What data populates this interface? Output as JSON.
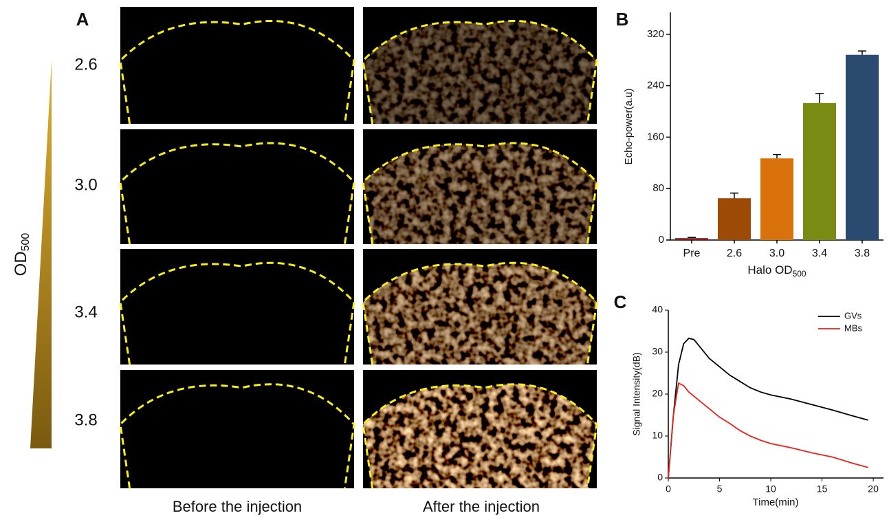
{
  "panel_a": {
    "label": "A",
    "rows": [
      "2.6",
      "3.0",
      "3.4",
      "3.8"
    ],
    "od_label": "OD",
    "od_sub": "500",
    "columns": [
      "Before the injection",
      "After the injection"
    ]
  },
  "chart_data": [
    {
      "type": "bar",
      "panel_label": "B",
      "ylabel": "Echo-power(a.u)",
      "xlabel": "Halo OD",
      "xlabel_sub": "500",
      "categories": [
        "Pre",
        "2.6",
        "3.0",
        "3.4",
        "3.8"
      ],
      "values": [
        3,
        65,
        127,
        213,
        288
      ],
      "errors": [
        1,
        8,
        6,
        15,
        6
      ],
      "colors": [
        "#8b1a1a",
        "#9c4a06",
        "#d9720a",
        "#7a8a12",
        "#2a4a70"
      ],
      "ylim": [
        0,
        354
      ],
      "yticks": [
        0,
        80,
        160,
        240,
        320
      ]
    },
    {
      "type": "line",
      "panel_label": "C",
      "xlabel": "Time(min)",
      "ylabel": "Signal Intensity(dB)",
      "x": [
        0,
        0.5,
        1,
        1.5,
        2,
        2.5,
        3,
        4,
        5,
        6,
        7,
        8,
        9,
        10,
        12,
        14,
        16,
        18,
        19.5
      ],
      "series": [
        {
          "name": "GVs",
          "color": "#000000",
          "values": [
            0,
            15,
            27,
            32,
            33.3,
            33,
            31.5,
            28.5,
            26.5,
            24.5,
            23,
            21.5,
            20.5,
            19.8,
            18.8,
            17.5,
            16.2,
            14.8,
            13.8
          ]
        },
        {
          "name": "MBs",
          "color": "#e8221c",
          "values": [
            0,
            15,
            22.6,
            22,
            20.5,
            19.5,
            18.5,
            16.5,
            14.5,
            13,
            11.3,
            10,
            9,
            8.2,
            7.2,
            6,
            5,
            3.5,
            2.5
          ]
        }
      ],
      "xlim": [
        0,
        21
      ],
      "ylim": [
        0,
        40
      ],
      "xticks": [
        0,
        5,
        10,
        15,
        20
      ],
      "yticks": [
        0,
        10,
        20,
        30,
        40
      ],
      "legend": "upper right"
    }
  ]
}
